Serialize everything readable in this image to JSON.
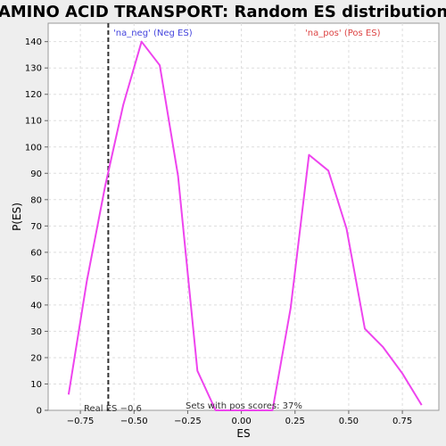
{
  "chart_data": {
    "type": "line",
    "title": "AMINO ACID TRANSPORT: Random ES distribution",
    "xlabel": "ES",
    "ylabel": "P(ES)",
    "xlim": [
      -0.9,
      0.92
    ],
    "ylim": [
      0,
      147
    ],
    "x_ticks": [
      -0.75,
      -0.5,
      -0.25,
      0.0,
      0.25,
      0.5,
      0.75
    ],
    "x_tick_labels": [
      "−0.75",
      "−0.50",
      "−0.25",
      "0.00",
      "0.25",
      "0.50",
      "0.75"
    ],
    "y_ticks": [
      0,
      10,
      20,
      30,
      40,
      50,
      60,
      70,
      80,
      90,
      100,
      110,
      120,
      130,
      140
    ],
    "y_tick_labels": [
      "0",
      "10",
      "20",
      "30",
      "40",
      "50",
      "60",
      "70",
      "80",
      "90",
      "100",
      "110",
      "120",
      "130",
      "140"
    ],
    "grid": true,
    "series": [
      {
        "color": "#ee44ee",
        "x": [
          -0.805,
          -0.72,
          -0.635,
          -0.55,
          -0.465,
          -0.38,
          -0.295,
          -0.205,
          -0.12,
          0.145,
          0.23,
          0.315,
          0.405,
          0.49,
          0.575,
          0.66,
          0.75,
          0.84
        ],
        "y": [
          6,
          49,
          85,
          116,
          140,
          131,
          89,
          15,
          0,
          0,
          39,
          97,
          91,
          69,
          31,
          24,
          14,
          2
        ]
      }
    ],
    "vline": {
      "x": -0.62,
      "color": "#333333"
    },
    "annotations": {
      "neg_label": "'na_neg' (Neg ES)",
      "neg_color": "#4444dd",
      "pos_label": "'na_pos' (Pos ES)",
      "pos_color": "#dd4444",
      "real_es": "Real ES −0.6",
      "pos_scores": "Sets with pos scores: 37%"
    }
  }
}
